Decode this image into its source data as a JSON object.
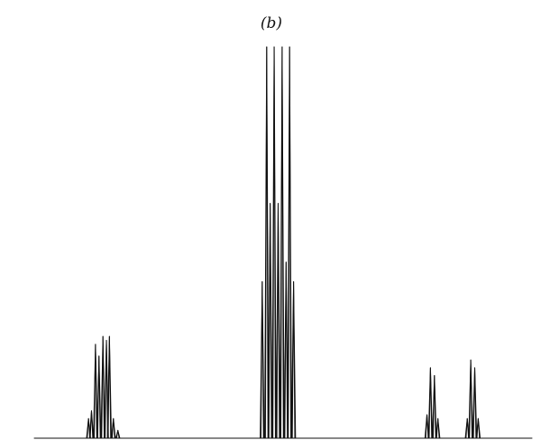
{
  "figure": {
    "panel_label": "(b)"
  },
  "chart_data": {
    "type": "line",
    "title": "(b)",
    "xlabel": "",
    "ylabel": "",
    "grid": false,
    "axes_visible": false,
    "xlim": [
      0,
      100
    ],
    "ylim": [
      0,
      1
    ],
    "series": [
      {
        "peaks": [
          {
            "x": 10.9,
            "height": 0.05
          },
          {
            "x": 11.5,
            "height": 0.07
          },
          {
            "x": 12.3,
            "height": 0.24
          },
          {
            "x": 13.0,
            "height": 0.21
          },
          {
            "x": 13.8,
            "height": 0.26
          },
          {
            "x": 14.5,
            "height": 0.25
          },
          {
            "x": 15.1,
            "height": 0.26
          },
          {
            "x": 15.9,
            "height": 0.05
          },
          {
            "x": 16.8,
            "height": 0.02
          },
          {
            "x": 45.8,
            "height": 0.4
          },
          {
            "x": 46.7,
            "height": 1.0
          },
          {
            "x": 47.4,
            "height": 0.6
          },
          {
            "x": 48.2,
            "height": 1.0
          },
          {
            "x": 49.0,
            "height": 0.6
          },
          {
            "x": 49.8,
            "height": 1.0
          },
          {
            "x": 50.6,
            "height": 0.45
          },
          {
            "x": 51.3,
            "height": 1.0
          },
          {
            "x": 52.1,
            "height": 0.4
          },
          {
            "x": 78.9,
            "height": 0.06
          },
          {
            "x": 79.6,
            "height": 0.18
          },
          {
            "x": 80.4,
            "height": 0.16
          },
          {
            "x": 81.1,
            "height": 0.05
          },
          {
            "x": 87.0,
            "height": 0.05
          },
          {
            "x": 87.7,
            "height": 0.2
          },
          {
            "x": 88.5,
            "height": 0.18
          },
          {
            "x": 89.2,
            "height": 0.05
          }
        ]
      }
    ]
  }
}
